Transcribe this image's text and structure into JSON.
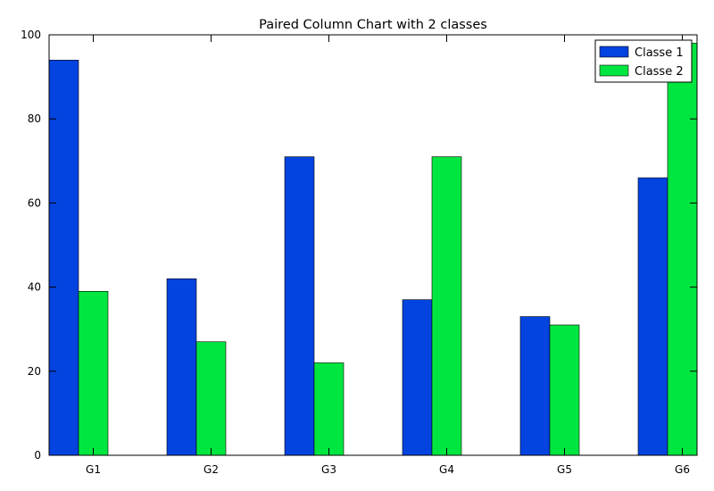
{
  "chart_data": {
    "type": "bar",
    "title": "Paired Column Chart with 2 classes",
    "xlabel": "",
    "ylabel": "",
    "categories": [
      "G1",
      "G2",
      "G3",
      "G4",
      "G5",
      "G6"
    ],
    "series": [
      {
        "name": "Classe 1",
        "color": "#0343df",
        "values": [
          94,
          42,
          71,
          37,
          33,
          66
        ]
      },
      {
        "name": "Classe 2",
        "color": "#00e640",
        "values": [
          39,
          27,
          22,
          71,
          31,
          98
        ]
      }
    ],
    "ylim": [
      0,
      100
    ],
    "yticks": [
      0,
      20,
      40,
      60,
      80,
      100
    ],
    "grid": false,
    "legend_position": "top-right"
  }
}
